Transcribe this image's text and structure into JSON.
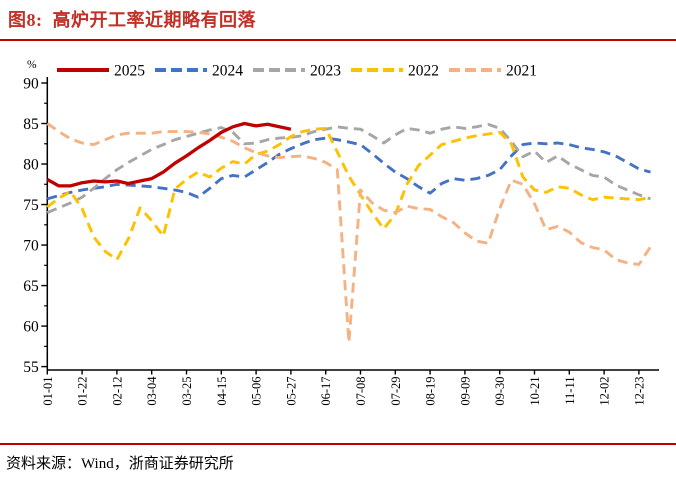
{
  "header": {
    "title": "图8:  高炉开工率近期略有回落"
  },
  "footer": {
    "source": "资料来源：Wind，浙商证券研究所"
  },
  "chart_data": {
    "type": "line",
    "title": "高炉开工率近期略有回落",
    "xlabel": "",
    "ylabel": "%",
    "unit_label": "%",
    "ylim": [
      55,
      90
    ],
    "yticks": [
      55,
      60,
      65,
      70,
      75,
      80,
      85,
      90
    ],
    "grid": false,
    "legend_position": "top",
    "x_tick_labels": [
      "01-01",
      "01-22",
      "02-12",
      "03-04",
      "03-25",
      "04-15",
      "05-06",
      "05-27",
      "06-17",
      "07-08",
      "07-29",
      "08-19",
      "09-09",
      "09-30",
      "10-21",
      "11-11",
      "12-02",
      "12-23"
    ],
    "weeks_between_labels": 3,
    "axis_color": "#000000",
    "series": [
      {
        "name": "2025",
        "color": "#c00000",
        "dashed": false,
        "values": [
          78.1,
          77.3,
          77.3,
          77.7,
          77.9,
          77.8,
          77.9,
          77.6,
          77.9,
          78.2,
          79.0,
          80.1,
          81.0,
          82.0,
          82.9,
          83.9,
          84.6,
          85.0,
          84.7,
          84.9,
          84.6,
          84.3
        ]
      },
      {
        "name": "2024",
        "color": "#4472c4",
        "dashed": true,
        "values": [
          75.7,
          76.1,
          76.5,
          76.8,
          77.0,
          77.2,
          77.5,
          77.4,
          77.3,
          77.2,
          77.0,
          76.8,
          76.5,
          75.9,
          77.0,
          78.2,
          78.6,
          78.4,
          79.3,
          80.2,
          81.2,
          81.9,
          82.5,
          83.0,
          83.2,
          83.0,
          82.7,
          82.4,
          81.3,
          80.1,
          79.0,
          78.2,
          77.2,
          76.4,
          77.6,
          78.2,
          78.0,
          78.2,
          78.6,
          79.3,
          81.0,
          82.4,
          82.6,
          82.5,
          82.6,
          82.4,
          82.0,
          81.8,
          81.5,
          81.0,
          80.2,
          79.4,
          79.0
        ]
      },
      {
        "name": "2023",
        "color": "#a6a6a6",
        "dashed": true,
        "values": [
          74.0,
          74.6,
          75.2,
          75.9,
          77.0,
          78.2,
          79.3,
          80.2,
          81.0,
          81.8,
          82.4,
          83.0,
          83.4,
          83.8,
          84.2,
          84.5,
          83.9,
          82.5,
          82.6,
          83.0,
          83.2,
          83.3,
          83.5,
          84.0,
          84.3,
          84.6,
          84.4,
          84.3,
          83.5,
          82.6,
          83.6,
          84.4,
          84.2,
          83.8,
          84.3,
          84.6,
          84.4,
          84.6,
          84.9,
          84.4,
          82.8,
          80.9,
          81.6,
          80.2,
          81.0,
          80.0,
          79.3,
          78.6,
          78.4,
          77.4,
          76.8,
          76.2,
          75.7
        ]
      },
      {
        "name": "2022",
        "color": "#ffc000",
        "dashed": true,
        "values": [
          74.7,
          75.8,
          76.6,
          74.5,
          71.0,
          69.2,
          68.2,
          70.8,
          74.6,
          73.0,
          71.1,
          76.9,
          78.1,
          79.0,
          78.4,
          79.5,
          80.3,
          80.0,
          81.2,
          81.6,
          82.4,
          83.4,
          84.0,
          84.3,
          84.4,
          81.5,
          78.5,
          76.2,
          74.0,
          72.0,
          73.8,
          77.5,
          79.8,
          81.1,
          82.4,
          82.8,
          83.2,
          83.5,
          83.7,
          83.9,
          82.5,
          78.4,
          76.8,
          76.5,
          77.2,
          77.0,
          76.2,
          75.6,
          75.9,
          75.8,
          75.7,
          75.6,
          75.9
        ]
      },
      {
        "name": "2021",
        "color": "#f4b183",
        "dashed": true,
        "values": [
          85.0,
          84.0,
          83.1,
          82.6,
          82.4,
          83.0,
          83.6,
          83.8,
          83.8,
          83.8,
          84.0,
          84.0,
          84.0,
          83.9,
          83.7,
          83.3,
          82.8,
          82.0,
          81.4,
          81.0,
          80.8,
          80.9,
          81.0,
          80.7,
          80.2,
          79.3,
          58.0,
          76.8,
          75.2,
          74.3,
          74.0,
          74.8,
          74.5,
          74.4,
          73.5,
          72.8,
          71.5,
          70.5,
          70.2,
          74.5,
          78.0,
          77.5,
          75.1,
          71.9,
          72.3,
          71.6,
          70.3,
          69.7,
          69.4,
          68.2,
          67.8,
          67.6,
          69.8
        ]
      }
    ]
  }
}
